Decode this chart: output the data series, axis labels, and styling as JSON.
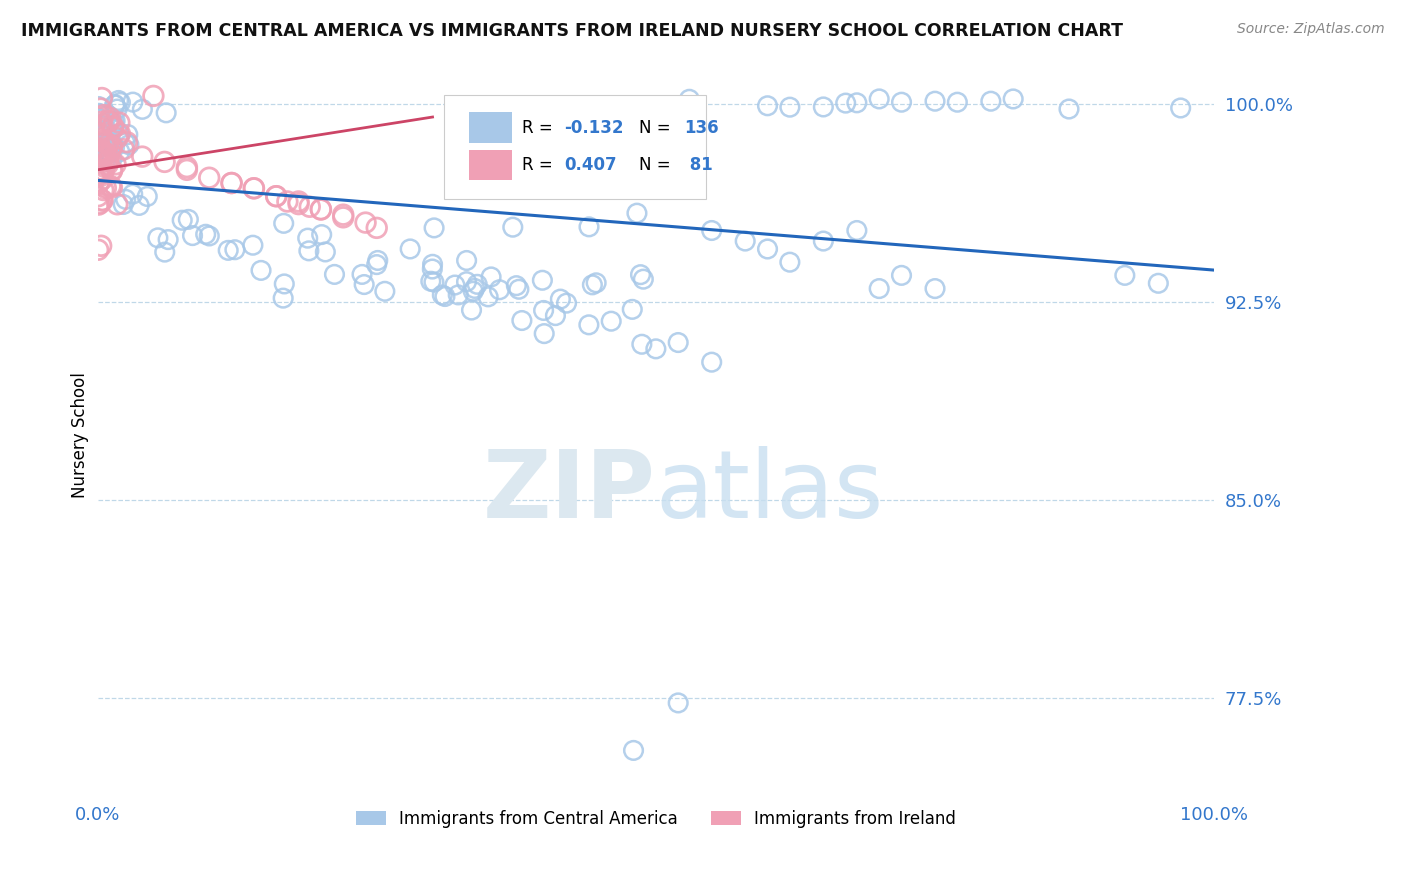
{
  "title": "IMMIGRANTS FROM CENTRAL AMERICA VS IMMIGRANTS FROM IRELAND NURSERY SCHOOL CORRELATION CHART",
  "source": "Source: ZipAtlas.com",
  "ylabel": "Nursery School",
  "ytick_labels": [
    "77.5%",
    "85.0%",
    "92.5%",
    "100.0%"
  ],
  "ytick_values": [
    0.775,
    0.85,
    0.925,
    1.0
  ],
  "blue_color": "#a8c8e8",
  "pink_color": "#f0a0b5",
  "trend_blue_color": "#2266bb",
  "trend_pink_color": "#cc4466",
  "watermark_color": "#dce8f0",
  "background_color": "#ffffff",
  "grid_color": "#c0d8e8",
  "tick_label_color": "#3377cc",
  "title_color": "#111111",
  "source_color": "#888888",
  "legend_r_color": "#3377cc",
  "legend_n_color": "#3377cc"
}
